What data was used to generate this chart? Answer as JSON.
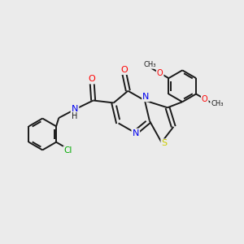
{
  "background_color": "#ebebeb",
  "bond_color": "#1a1a1a",
  "atom_colors": {
    "O": "#ff0000",
    "N": "#0000ee",
    "S": "#cccc00",
    "Cl": "#00aa00",
    "C": "#1a1a1a",
    "H": "#1a1a1a"
  },
  "font_size": 7.0,
  "line_width": 1.4,
  "figsize": [
    3.0,
    3.0
  ],
  "dpi": 100
}
